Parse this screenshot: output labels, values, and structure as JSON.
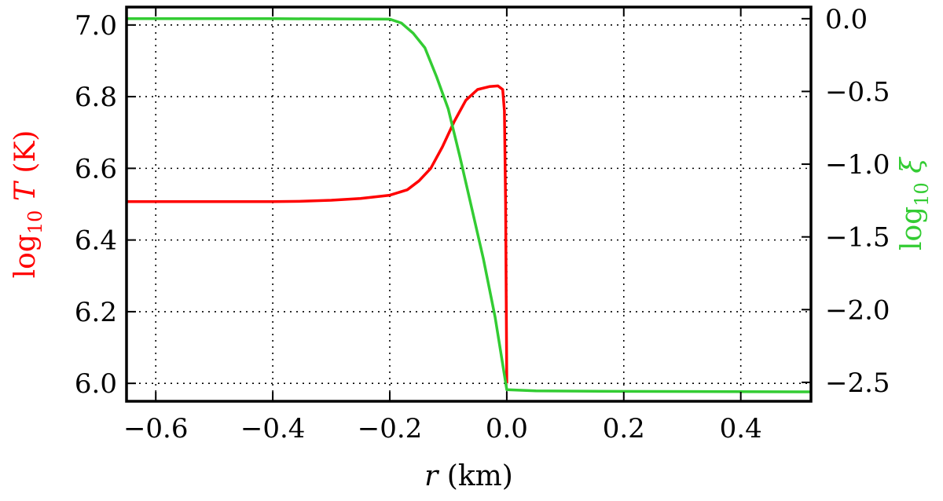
{
  "chart_data": {
    "type": "line",
    "xlabel": {
      "symbol": "r",
      "unit": " (km)"
    },
    "ylabel_left": {
      "base": "log",
      "sub": "10",
      "symbol": "T",
      "unit": " (K)"
    },
    "ylabel_right": {
      "base": "log",
      "sub": "10",
      "symbol": "ξ"
    },
    "xlim": [
      -0.65,
      0.52
    ],
    "ylim_left": [
      5.95,
      7.05
    ],
    "ylim_right": [
      -2.63,
      0.08
    ],
    "grid": true,
    "x_ticks": [
      -0.6,
      -0.4,
      -0.2,
      0.0,
      0.2,
      0.4
    ],
    "x_tick_labels": [
      "−0.6",
      "−0.4",
      "−0.2",
      "0.0",
      "0.2",
      "0.4"
    ],
    "y_ticks_left": [
      6.0,
      6.2,
      6.4,
      6.6,
      6.8,
      7.0
    ],
    "y_tick_labels_left": [
      "6.0",
      "6.2",
      "6.4",
      "6.6",
      "6.8",
      "7.0"
    ],
    "y_ticks_right": [
      0.0,
      -0.5,
      -1.0,
      -1.5,
      -2.0,
      -2.5
    ],
    "y_tick_labels_right": [
      "0.0",
      "−0.5",
      "−1.0",
      "−1.5",
      "−2.0",
      "−2.5"
    ],
    "series": [
      {
        "axis": "left",
        "color": "#ff0000",
        "points": [
          [
            -0.65,
            6.507
          ],
          [
            -0.5,
            6.507
          ],
          [
            -0.4,
            6.507
          ],
          [
            -0.35,
            6.508
          ],
          [
            -0.3,
            6.511
          ],
          [
            -0.25,
            6.516
          ],
          [
            -0.2,
            6.525
          ],
          [
            -0.17,
            6.54
          ],
          [
            -0.15,
            6.565
          ],
          [
            -0.13,
            6.6
          ],
          [
            -0.11,
            6.66
          ],
          [
            -0.09,
            6.73
          ],
          [
            -0.07,
            6.79
          ],
          [
            -0.05,
            6.82
          ],
          [
            -0.03,
            6.828
          ],
          [
            -0.015,
            6.83
          ],
          [
            -0.007,
            6.82
          ],
          [
            -0.004,
            6.76
          ],
          [
            -0.002,
            6.5
          ],
          [
            0.0,
            6.0
          ]
        ]
      },
      {
        "axis": "right",
        "color": "#33cc33",
        "points": [
          [
            -0.65,
            0.0
          ],
          [
            -0.4,
            0.0
          ],
          [
            -0.2,
            -0.003
          ],
          [
            -0.18,
            -0.03
          ],
          [
            -0.16,
            -0.1
          ],
          [
            -0.14,
            -0.2
          ],
          [
            -0.12,
            -0.4
          ],
          [
            -0.1,
            -0.62
          ],
          [
            -0.08,
            -0.95
          ],
          [
            -0.06,
            -1.3
          ],
          [
            -0.04,
            -1.65
          ],
          [
            -0.02,
            -2.05
          ],
          [
            0.0,
            -2.55
          ],
          [
            0.05,
            -2.558
          ],
          [
            0.2,
            -2.562
          ],
          [
            0.52,
            -2.565
          ]
        ]
      }
    ]
  }
}
